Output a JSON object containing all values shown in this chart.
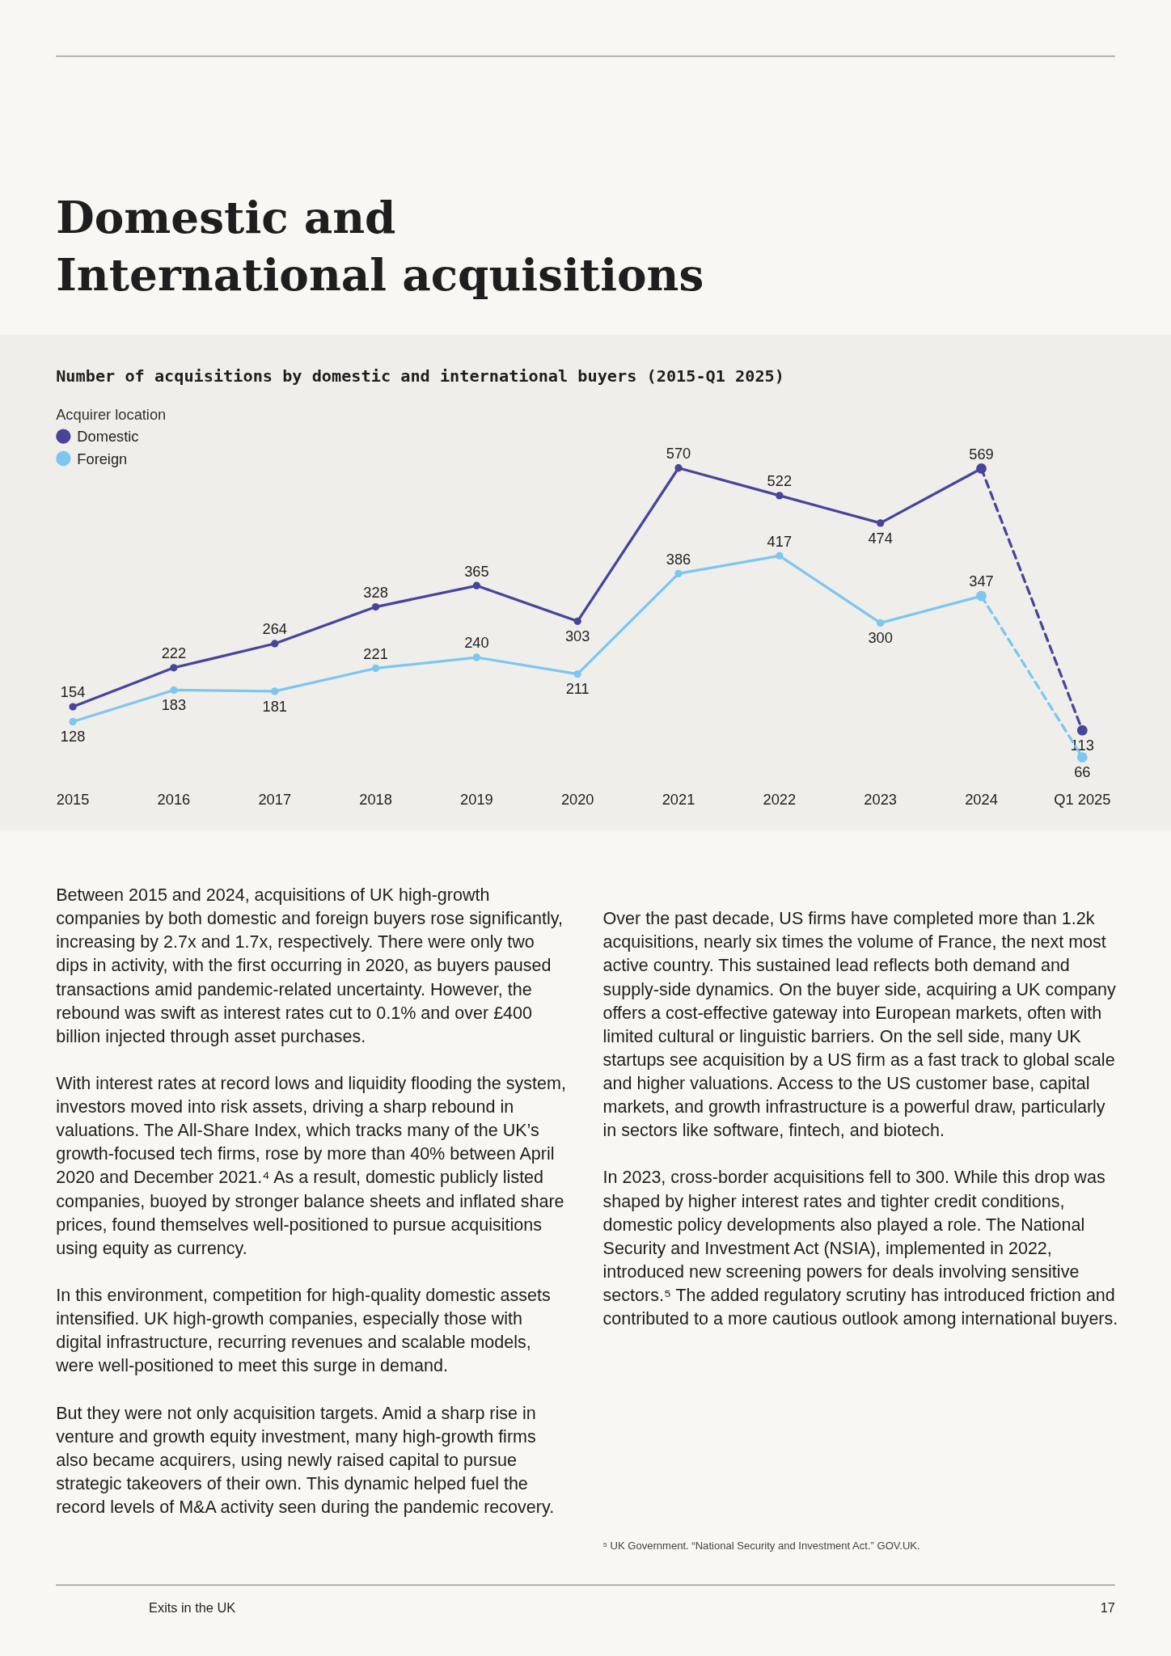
{
  "chart_data": {
    "type": "line",
    "title": "Domestic and\nInternational acquisitions",
    "subtitle": "Number of acquisitions by domestic and international buyers (2015-Q1 2025)",
    "legend_title": "Acquirer location",
    "legend": "top left",
    "marker": "circle",
    "categories": [
      "2015",
      "2016",
      "2017",
      "2018",
      "2019",
      "2020",
      "2021",
      "2022",
      "2023",
      "2024",
      "Q1 2025"
    ],
    "series": [
      {
        "name": "Domestic",
        "color": "#48449c",
        "line_style": "solid",
        "values": [
          154,
          222,
          264,
          328,
          365,
          303,
          570,
          522,
          474,
          569,
          null
        ],
        "value_labels": [
          "154",
          "222",
          "264",
          "328",
          "365",
          "303",
          "570",
          "522",
          "474",
          "569",
          null
        ]
      },
      {
        "name": "Foreign",
        "color": "#7cc6ef",
        "line_style": "solid",
        "values": [
          128,
          183,
          181,
          221,
          240,
          211,
          386,
          417,
          300,
          347,
          null
        ],
        "value_labels": [
          "128",
          "183",
          "181",
          "221",
          "240",
          "211",
          "386",
          "417",
          "300",
          "347",
          null
        ]
      },
      {
        "color": "#48449c",
        "line_style": "dashed",
        "values": [
          null,
          null,
          null,
          null,
          null,
          null,
          null,
          null,
          null,
          569,
          113
        ],
        "value_labels": [
          null,
          null,
          null,
          null,
          null,
          null,
          null,
          null,
          null,
          null,
          "113"
        ]
      },
      {
        "color": "#7cc6ef",
        "line_style": "dashed",
        "values": [
          null,
          null,
          null,
          null,
          null,
          null,
          null,
          null,
          null,
          347,
          66
        ],
        "value_labels": [
          null,
          null,
          null,
          null,
          null,
          null,
          null,
          null,
          null,
          null,
          "66"
        ]
      }
    ],
    "annotations": [
      "Between 2015 and 2024, acquisitions of UK high-growth companies by both domestic and foreign buyers rose significantly, increasing by 2.7x and 1.7x, respectively. There were only two dips in activity, with the first occurring in 2020, as buyers paused transactions amid pandemic-related uncertainty. However, the rebound was swift as interest rates cut to 0.1% and over £400 billion injected through asset purchases.",
      "With interest rates at record lows and liquidity flooding the system, investors moved into risk assets, driving a sharp rebound in valuations. The All-Share Index, which tracks many of the UK’s growth-focused tech firms, rose by more than 40% between April 2020 and December 2021.⁴ As a result, domestic publicly listed companies, buoyed by stronger balance sheets and inflated share prices, found themselves well-positioned to pursue acquisitions using equity as currency.",
      "In this environment, competition for high-quality domestic assets intensified. UK high-growth companies, especially those with digital infrastructure, recurring revenues and scalable models, were well-positioned to meet this surge in demand.",
      "But they were not only acquisition targets. Amid a sharp rise in venture and growth equity investment, many high-growth firms also became acquirers, using newly raised capital to pursue strategic takeovers of their own. This dynamic helped fuel the record levels of M&A activity seen during the pandemic recovery.",
      "Over the past decade, US firms have completed more than 1.2k acquisitions, nearly six times the volume of France, the next most active country. This sustained lead reflects both demand and supply-side dynamics. On the buyer side, acquiring a UK company offers a cost-effective gateway into European markets, often with limited cultural or linguistic barriers. On the sell side, many UK startups see acquisition by a US firm as a fast track to global scale and higher valuations. Access to the US customer base, capital markets, and growth infrastructure is a powerful draw, particularly in sectors like software, fintech, and biotech.",
      "In 2023, cross-border acquisitions fell to 300. While this drop was shaped by higher interest rates and tighter credit conditions, domestic policy developments also played a role. The National Security and Investment Act (NSIA), implemented in 2022, introduced new screening powers for deals involving sensitive sectors.⁵ The added regulatory scrutiny has introduced friction and contributed to a more cautious outlook among international buyers.",
      "⁵ UK Government. “National Security and Investment Act.” GOV.UK.",
      "Exits in the UK",
      "17"
    ]
  }
}
